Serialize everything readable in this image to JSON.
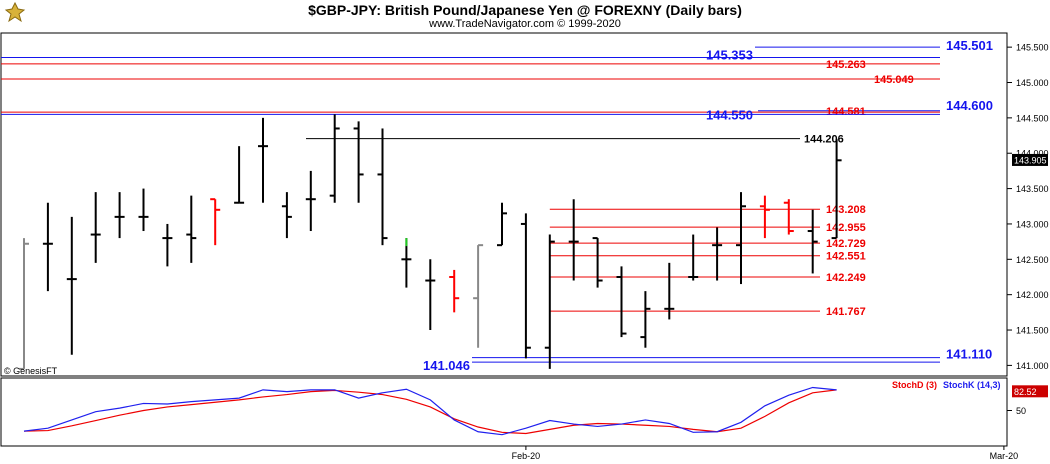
{
  "header": {
    "title": "$GBP-JPY:  British Pound/Japanese Yen @ FOREXNY  (Daily bars)",
    "subtitle": "www.TradeNavigator.com © 1999-2020",
    "watermark": "© GenesisFT"
  },
  "colors": {
    "bar": "#000000",
    "down_bar": "#ff0000",
    "level_red": "#ee0000",
    "level_blue": "#1515ee",
    "level_black": "#000000",
    "stoch_d": "#ee0000",
    "stoch_k": "#2020ee",
    "last_price_bg": "#000000",
    "stoch_value_bg": "#cc0000"
  },
  "chart_data": [
    {
      "type": "ohlc",
      "title": "$GBP-JPY:  British Pound/Japanese Yen @ FOREXNY  (Daily bars)",
      "ylim": [
        140.85,
        145.7
      ],
      "yticks": [
        "145.500",
        "145.000",
        "144.500",
        "144.000",
        "143.500",
        "143.000",
        "142.500",
        "142.000",
        "141.500",
        "141.000"
      ],
      "x_labels": [
        {
          "label": "Feb-20",
          "bar_index": 21
        },
        {
          "label": "Mar-20",
          "bar_index": 41
        }
      ],
      "last_price": "143.905",
      "bars": [
        {
          "o": 140.95,
          "h": 142.8,
          "l": 140.95,
          "c": 142.72,
          "gray": true
        },
        {
          "o": 142.72,
          "h": 143.3,
          "l": 142.05,
          "c": 142.72
        },
        {
          "o": 142.22,
          "h": 143.1,
          "l": 141.15,
          "c": 142.22
        },
        {
          "o": 142.85,
          "h": 143.45,
          "l": 142.45,
          "c": 142.85
        },
        {
          "o": 143.1,
          "h": 143.45,
          "l": 142.8,
          "c": 143.1
        },
        {
          "o": 143.1,
          "h": 143.5,
          "l": 142.9,
          "c": 143.1
        },
        {
          "o": 142.8,
          "h": 143.0,
          "l": 142.4,
          "c": 142.8
        },
        {
          "o": 142.85,
          "h": 143.4,
          "l": 142.45,
          "c": 142.8
        },
        {
          "o": 143.35,
          "h": 143.35,
          "l": 142.7,
          "c": 143.2,
          "down": true
        },
        {
          "o": 143.3,
          "h": 144.1,
          "l": 143.3,
          "c": 143.3
        },
        {
          "o": 144.1,
          "h": 144.5,
          "l": 143.3,
          "c": 144.1
        },
        {
          "o": 143.25,
          "h": 143.45,
          "l": 142.8,
          "c": 143.1
        },
        {
          "o": 143.35,
          "h": 143.75,
          "l": 142.9,
          "c": 143.35
        },
        {
          "o": 143.4,
          "h": 144.55,
          "l": 143.3,
          "c": 144.35
        },
        {
          "o": 144.35,
          "h": 144.45,
          "l": 143.3,
          "c": 143.7
        },
        {
          "o": 143.7,
          "h": 144.35,
          "l": 142.7,
          "c": 142.8
        },
        {
          "o": 142.5,
          "h": 142.8,
          "l": 142.1,
          "c": 142.5,
          "green_top": true
        },
        {
          "o": 142.2,
          "h": 142.5,
          "l": 141.5,
          "c": 142.2
        },
        {
          "o": 142.25,
          "h": 142.35,
          "l": 141.75,
          "c": 141.95,
          "down": true
        },
        {
          "o": 141.95,
          "h": 142.7,
          "l": 141.25,
          "c": 142.7,
          "gray": true
        },
        {
          "o": 142.7,
          "h": 143.3,
          "l": 142.7,
          "c": 143.15
        },
        {
          "o": 143.0,
          "h": 143.15,
          "l": 141.1,
          "c": 141.25
        },
        {
          "o": 141.25,
          "h": 142.85,
          "l": 140.95,
          "c": 142.75
        },
        {
          "o": 142.75,
          "h": 143.35,
          "l": 142.2,
          "c": 142.75
        },
        {
          "o": 142.8,
          "h": 142.8,
          "l": 142.1,
          "c": 142.2
        },
        {
          "o": 142.25,
          "h": 142.4,
          "l": 141.4,
          "c": 141.45
        },
        {
          "o": 141.4,
          "h": 142.05,
          "l": 141.25,
          "c": 141.8
        },
        {
          "o": 141.8,
          "h": 142.45,
          "l": 141.65,
          "c": 141.8
        },
        {
          "o": 142.25,
          "h": 142.85,
          "l": 142.2,
          "c": 142.25
        },
        {
          "o": 142.7,
          "h": 142.95,
          "l": 142.2,
          "c": 142.7
        },
        {
          "o": 142.7,
          "h": 143.45,
          "l": 142.15,
          "c": 143.25
        },
        {
          "o": 143.25,
          "h": 143.4,
          "l": 142.8,
          "c": 143.2,
          "down": true
        },
        {
          "o": 143.3,
          "h": 143.35,
          "l": 142.85,
          "c": 142.9,
          "down": true
        },
        {
          "o": 142.9,
          "h": 143.2,
          "l": 142.3,
          "c": 142.75
        },
        {
          "o": 142.8,
          "h": 144.2,
          "l": 142.8,
          "c": 143.9
        }
      ],
      "levels": [
        {
          "value": "145.501",
          "price": 145.501,
          "color": "blue",
          "extend": "right"
        },
        {
          "value": "145.353",
          "price": 145.353,
          "color": "blue",
          "extend": "full",
          "label_side": "left"
        },
        {
          "value": "145.263",
          "price": 145.263,
          "color": "red",
          "extend": "full"
        },
        {
          "value": "145.049",
          "price": 145.049,
          "color": "red",
          "extend": "full"
        },
        {
          "value": "144.600",
          "price": 144.6,
          "color": "blue",
          "extend": "right"
        },
        {
          "value": "144.581",
          "price": 144.581,
          "color": "red",
          "extend": "full"
        },
        {
          "value": "144.550",
          "price": 144.55,
          "color": "blue",
          "extend": "full",
          "label_side": "left"
        },
        {
          "value": "144.206",
          "price": 144.206,
          "color": "black",
          "extend": "mid"
        },
        {
          "value": "143.208",
          "price": 143.208,
          "color": "red",
          "extend": "mid"
        },
        {
          "value": "142.955",
          "price": 142.955,
          "color": "red",
          "extend": "mid"
        },
        {
          "value": "142.729",
          "price": 142.729,
          "color": "red",
          "extend": "mid"
        },
        {
          "value": "142.551",
          "price": 142.551,
          "color": "red",
          "extend": "mid"
        },
        {
          "value": "142.249",
          "price": 142.249,
          "color": "red",
          "extend": "mid"
        },
        {
          "value": "141.767",
          "price": 141.767,
          "color": "red",
          "extend": "mid"
        },
        {
          "value": "141.110",
          "price": 141.11,
          "color": "blue",
          "extend": "right"
        },
        {
          "value": "141.046",
          "price": 141.046,
          "color": "blue",
          "extend": "right",
          "label_side": "left"
        }
      ]
    },
    {
      "type": "line",
      "ylim": [
        0,
        100
      ],
      "yticks": [
        "50"
      ],
      "last_value": "82.52",
      "series": [
        {
          "name": "StochD (3)",
          "values": [
            15,
            16,
            24,
            33,
            42,
            50,
            56,
            60,
            64,
            68,
            73,
            77,
            82,
            84,
            81,
            77,
            69,
            56,
            36,
            22,
            13,
            11,
            18,
            25,
            28,
            27,
            25,
            23,
            18,
            14,
            20,
            40,
            63,
            80,
            85
          ]
        },
        {
          "name": "StochK (14,3)",
          "values": [
            15,
            20,
            34,
            48,
            54,
            62,
            61,
            65,
            68,
            71,
            85,
            82,
            85,
            85,
            71,
            80,
            86,
            68,
            34,
            14,
            9,
            20,
            33,
            27,
            23,
            27,
            34,
            28,
            13,
            14,
            30,
            58,
            76,
            89,
            85
          ]
        }
      ]
    }
  ]
}
